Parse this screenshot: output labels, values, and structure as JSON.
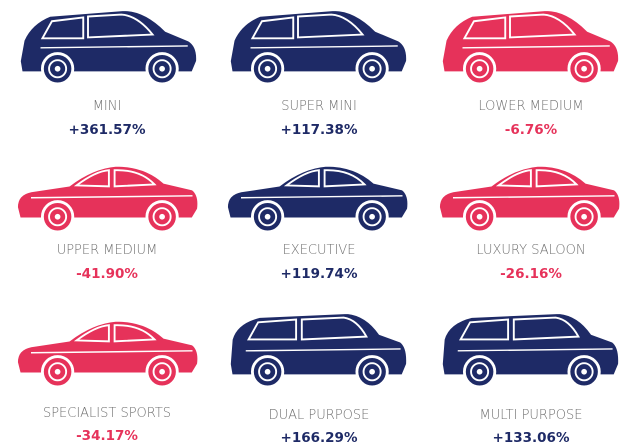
{
  "items": [
    {
      "label": "MINI",
      "value": "+361.57%",
      "color": "#1e2a66"
    },
    {
      "label": "SUPER MINI",
      "value": "+117.38%",
      "color": "#1e2a66"
    },
    {
      "label": "LOWER MEDIUM",
      "value": "-6.76%",
      "color": "#e6325a"
    },
    {
      "label": "UPPER MEDIUM",
      "value": "-41.90%",
      "color": "#e6325a"
    },
    {
      "label": "EXECUTIVE",
      "value": "+119.74%",
      "color": "#1e2a66"
    },
    {
      "label": "LUXURY SALOON",
      "value": "-26.16%",
      "color": "#e6325a"
    },
    {
      "label": "SPECIALIST SPORTS",
      "value": "-34.17%",
      "color": "#e6325a"
    },
    {
      "label": "DUAL PURPOSE",
      "value": "+166.29%",
      "color": "#1e2a66"
    },
    {
      "label": "MULTI PURPOSE",
      "value": "+133.06%",
      "color": "#1e2a66"
    }
  ]
}
